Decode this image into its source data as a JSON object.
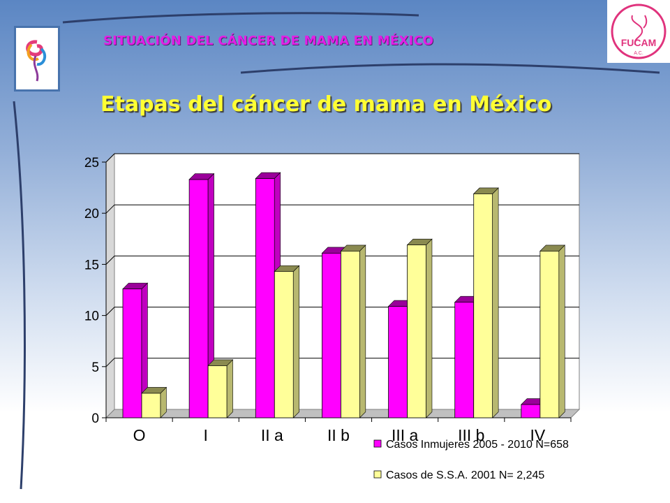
{
  "slide": {
    "heading": "SITUACIÓN  DEL CÁNCER DE MAMA EN MÉXICO",
    "title": "Etapas del cáncer de mama en México",
    "logo_right_text": "FUCAM",
    "logo_right_sub": "A.C."
  },
  "colors": {
    "series1": "#ff00ff",
    "series2": "#ffff99",
    "title": "#ffff33",
    "heading": "#e21ee6"
  },
  "chart_data": {
    "type": "bar",
    "title": "Etapas del cáncer de mama en México",
    "xlabel": "",
    "ylabel": "",
    "categories": [
      "O",
      "I",
      "II a",
      "II b",
      "III a",
      "III b",
      "IV"
    ],
    "series": [
      {
        "name": "Casos Inmujeres 2005 - 2010 N=658",
        "values": [
          12.6,
          23.3,
          23.4,
          16.1,
          10.9,
          11.3,
          1.3
        ]
      },
      {
        "name": "Casos de S.S.A.  2001 N= 2,245",
        "values": [
          2.4,
          5.1,
          14.3,
          16.3,
          16.9,
          21.9,
          16.3
        ]
      }
    ],
    "ylim": [
      0,
      25
    ],
    "yticks": [
      "0",
      "5",
      "10",
      "15",
      "20",
      "25"
    ],
    "grid": true,
    "legend": "bottom-right"
  }
}
